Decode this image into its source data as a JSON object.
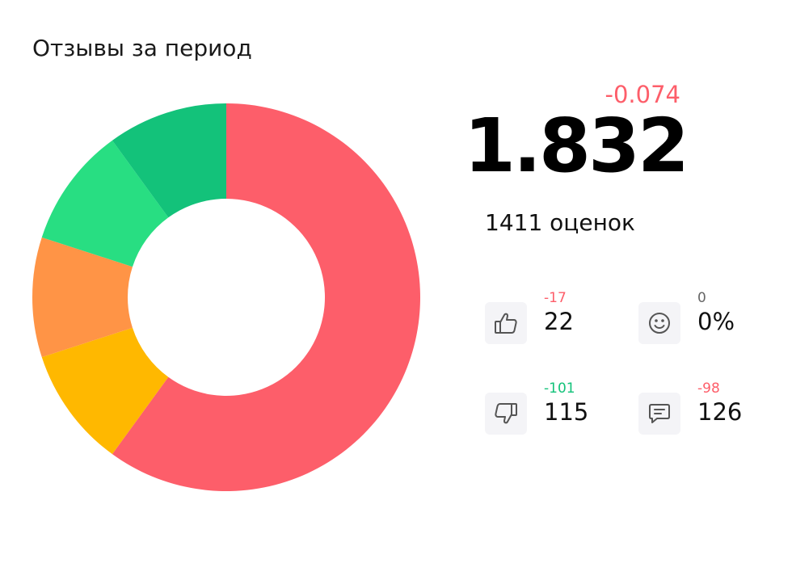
{
  "title": "Отзывы за период",
  "rating": {
    "delta": "-0.074",
    "value": "1.832",
    "count_text": "1411 оценок"
  },
  "stats": [
    {
      "id": "likes",
      "icon": "thumbs-up-icon",
      "delta": "-17",
      "value": "22",
      "delta_color": "#fd5e6a"
    },
    {
      "id": "smiles",
      "icon": "smile-icon",
      "delta": "0",
      "value": "0%",
      "delta_color": "#666666"
    },
    {
      "id": "dislikes",
      "icon": "thumbs-down-icon",
      "delta": "-101",
      "value": "115",
      "delta_color": "#13c27a"
    },
    {
      "id": "comments",
      "icon": "comment-icon",
      "delta": "-98",
      "value": "126",
      "delta_color": "#fd5e6a"
    }
  ],
  "chart_data": {
    "type": "pie",
    "donut": true,
    "start_angle": "top",
    "direction": "clockwise",
    "slices": [
      {
        "value": 60,
        "color": "#fd5e6a"
      },
      {
        "value": 10,
        "color": "#ffb800"
      },
      {
        "value": 10,
        "color": "#ff9446"
      },
      {
        "value": 10,
        "color": "#28de82"
      },
      {
        "value": 10,
        "color": "#13c27a"
      }
    ]
  }
}
